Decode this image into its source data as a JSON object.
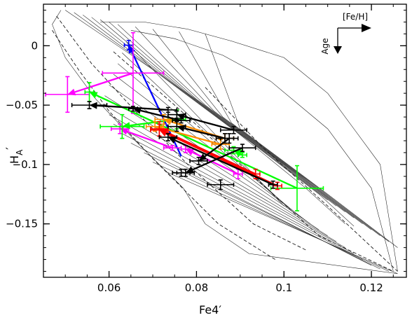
{
  "chart_data": {
    "type": "scatter",
    "xlabel": "Fe4′",
    "ylabel_main": "H",
    "ylabel_sub": "A",
    "ylabel_prime": "′",
    "xlim": [
      0.045,
      0.128
    ],
    "ylim": [
      -0.195,
      0.035
    ],
    "xticks": [
      0.06,
      0.08,
      0.1,
      0.12
    ],
    "xtick_labels": [
      "0.06",
      "0.08",
      "0.1",
      "0.12"
    ],
    "yticks": [
      0,
      -0.05,
      -0.1,
      -0.15
    ],
    "ytick_labels": [
      "0",
      "−0.05",
      "−0.1",
      "−0.15"
    ],
    "inset": {
      "feh_label": "[Fe/H]",
      "age_label": "Age"
    },
    "grid_lines": [
      {
        "style": "dashed",
        "points": [
          [
            0.047,
            0.013
          ],
          [
            0.053,
            -0.02
          ],
          [
            0.06,
            -0.055
          ],
          [
            0.07,
            -0.095
          ],
          [
            0.085,
            -0.15
          ],
          [
            0.098,
            -0.18
          ]
        ]
      },
      {
        "style": "dashed",
        "points": [
          [
            0.048,
            0.025
          ],
          [
            0.056,
            -0.015
          ],
          [
            0.066,
            -0.055
          ],
          [
            0.078,
            -0.1
          ],
          [
            0.093,
            -0.15
          ],
          [
            0.105,
            -0.172
          ]
        ]
      },
      {
        "style": "dashed",
        "points": [
          [
            0.061,
            -0.005
          ],
          [
            0.075,
            -0.05
          ],
          [
            0.09,
            -0.1
          ],
          [
            0.108,
            -0.16
          ],
          [
            0.125,
            -0.19
          ]
        ]
      },
      {
        "style": "dashed",
        "points": [
          [
            0.082,
            -0.035
          ],
          [
            0.095,
            -0.085
          ],
          [
            0.11,
            -0.135
          ],
          [
            0.126,
            -0.19
          ]
        ]
      },
      {
        "style": "solid",
        "points": [
          [
            0.064,
            0.003
          ],
          [
            0.1,
            -0.135
          ]
        ]
      },
      {
        "style": "solid",
        "points": [
          [
            0.063,
            -0.006
          ],
          [
            0.102,
            -0.14
          ]
        ]
      },
      {
        "style": "solid",
        "points": [
          [
            0.062,
            -0.015
          ],
          [
            0.104,
            -0.145
          ]
        ]
      },
      {
        "style": "solid",
        "points": [
          [
            0.061,
            -0.024
          ],
          [
            0.106,
            -0.15
          ]
        ]
      },
      {
        "style": "solid",
        "points": [
          [
            0.06,
            -0.033
          ],
          [
            0.108,
            -0.155
          ]
        ]
      },
      {
        "style": "solid",
        "points": [
          [
            0.059,
            -0.042
          ],
          [
            0.11,
            -0.16
          ]
        ]
      },
      {
        "style": "solid",
        "points": [
          [
            0.059,
            -0.05
          ],
          [
            0.112,
            -0.165
          ]
        ]
      },
      {
        "style": "solid",
        "points": [
          [
            0.06,
            -0.058
          ],
          [
            0.114,
            -0.17
          ]
        ]
      },
      {
        "style": "solid",
        "points": [
          [
            0.061,
            -0.066
          ],
          [
            0.116,
            -0.175
          ]
        ]
      },
      {
        "style": "solid",
        "points": [
          [
            0.063,
            -0.074
          ],
          [
            0.118,
            -0.18
          ]
        ]
      },
      {
        "style": "solid",
        "points": [
          [
            0.065,
            -0.082
          ],
          [
            0.12,
            -0.185
          ]
        ]
      },
      {
        "style": "solid",
        "points": [
          [
            0.068,
            -0.09
          ],
          [
            0.122,
            -0.188
          ]
        ]
      },
      {
        "style": "solid",
        "points": [
          [
            0.07,
            -0.098
          ],
          [
            0.124,
            -0.19
          ]
        ]
      },
      {
        "style": "solid",
        "points": [
          [
            0.073,
            -0.106
          ],
          [
            0.126,
            -0.192
          ]
        ]
      },
      {
        "style": "solid",
        "points": [
          [
            0.05,
            0.03
          ],
          [
            0.07,
            -0.02
          ],
          [
            0.09,
            -0.075
          ],
          [
            0.105,
            -0.12
          ],
          [
            0.114,
            -0.15
          ]
        ]
      },
      {
        "style": "solid",
        "points": [
          [
            0.052,
            0.028
          ],
          [
            0.072,
            -0.025
          ],
          [
            0.092,
            -0.08
          ],
          [
            0.108,
            -0.125
          ],
          [
            0.116,
            -0.152
          ]
        ]
      },
      {
        "style": "solid",
        "points": [
          [
            0.054,
            0.026
          ],
          [
            0.074,
            -0.03
          ],
          [
            0.094,
            -0.085
          ],
          [
            0.11,
            -0.13
          ]
        ]
      },
      {
        "style": "solid",
        "points": [
          [
            0.056,
            0.024
          ],
          [
            0.076,
            -0.035
          ],
          [
            0.096,
            -0.09
          ],
          [
            0.112,
            -0.135
          ]
        ]
      },
      {
        "style": "solid",
        "points": [
          [
            0.058,
            0.022
          ],
          [
            0.078,
            -0.04
          ],
          [
            0.098,
            -0.095
          ],
          [
            0.114,
            -0.14
          ]
        ]
      },
      {
        "style": "solid",
        "points": [
          [
            0.06,
            0.02
          ],
          [
            0.08,
            -0.045
          ],
          [
            0.1,
            -0.1
          ],
          [
            0.116,
            -0.145
          ]
        ]
      },
      {
        "style": "solid",
        "points": [
          [
            0.062,
            0.018
          ],
          [
            0.082,
            -0.05
          ],
          [
            0.102,
            -0.105
          ],
          [
            0.118,
            -0.15
          ]
        ]
      },
      {
        "style": "solid",
        "points": [
          [
            0.066,
            0.016
          ],
          [
            0.084,
            -0.055
          ],
          [
            0.104,
            -0.11
          ],
          [
            0.12,
            -0.155
          ]
        ]
      },
      {
        "style": "solid",
        "points": [
          [
            0.07,
            0.014
          ],
          [
            0.086,
            -0.06
          ],
          [
            0.106,
            -0.115
          ],
          [
            0.122,
            -0.16
          ]
        ]
      },
      {
        "style": "solid",
        "points": [
          [
            0.076,
            0.012
          ],
          [
            0.088,
            -0.065
          ],
          [
            0.108,
            -0.12
          ],
          [
            0.124,
            -0.165
          ]
        ]
      },
      {
        "style": "solid",
        "points": [
          [
            0.082,
            0.01
          ],
          [
            0.09,
            -0.07
          ],
          [
            0.11,
            -0.125
          ],
          [
            0.126,
            -0.17
          ]
        ]
      },
      {
        "style": "solid",
        "points": [
          [
            0.058,
            0.02
          ],
          [
            0.068,
            0.02
          ],
          [
            0.078,
            0.014
          ],
          [
            0.088,
            0.004
          ],
          [
            0.1,
            -0.01
          ],
          [
            0.11,
            -0.04
          ],
          [
            0.122,
            -0.1
          ],
          [
            0.126,
            -0.19
          ]
        ]
      },
      {
        "style": "solid",
        "points": [
          [
            0.065,
            0.013
          ],
          [
            0.075,
            0.006
          ],
          [
            0.086,
            -0.008
          ],
          [
            0.097,
            -0.03
          ],
          [
            0.11,
            -0.07
          ],
          [
            0.12,
            -0.12
          ],
          [
            0.125,
            -0.19
          ]
        ]
      },
      {
        "style": "solid",
        "points": [
          [
            0.049,
            0.03
          ],
          [
            0.047,
            0.018
          ],
          [
            0.05,
            -0.01
          ],
          [
            0.057,
            -0.045
          ],
          [
            0.066,
            -0.08
          ],
          [
            0.077,
            -0.12
          ],
          [
            0.082,
            -0.15
          ],
          [
            0.092,
            -0.175
          ],
          [
            0.126,
            -0.192
          ]
        ]
      }
    ],
    "vectors": [
      {
        "color": "#0000ff",
        "x1": 0.0765,
        "y1": -0.093,
        "x2": 0.0645,
        "y2": 0.0005,
        "xerr1": 0.0,
        "yerr1": 0.0,
        "xerr2": 0.001,
        "yerr2": 0.004
      },
      {
        "color": "#ff00ff",
        "x1": 0.0655,
        "y1": -0.023,
        "x2": 0.0505,
        "y2": -0.041,
        "xerr1": 0.007,
        "yerr1": 0.034,
        "xerr2": 0.005,
        "yerr2": 0.015
      },
      {
        "color": "#ff00ff",
        "x1": 0.0745,
        "y1": -0.086,
        "x2": 0.0625,
        "y2": -0.07,
        "xerr1": 0.002,
        "yerr1": 0.002,
        "xerr2": 0.002,
        "yerr2": 0.004
      },
      {
        "color": "#ff00ff",
        "x1": 0.0895,
        "y1": -0.108,
        "x2": 0.0775,
        "y2": -0.087,
        "xerr1": 0.001,
        "yerr1": 0.004,
        "xerr2": 0.001,
        "yerr2": 0.003
      },
      {
        "color": "#00ff00",
        "x1": 0.103,
        "y1": -0.12,
        "x2": 0.0555,
        "y2": -0.039,
        "xerr1": 0.006,
        "yerr1": 0.019,
        "xerr2": 0.001,
        "yerr2": 0.008
      },
      {
        "color": "#00ff00",
        "x1": 0.0755,
        "y1": -0.062,
        "x2": 0.063,
        "y2": -0.068,
        "xerr1": 0.002,
        "yerr1": 0.008,
        "xerr2": 0.005,
        "yerr2": 0.01
      },
      {
        "color": "#00ff00",
        "x1": 0.0905,
        "y1": -0.092,
        "x2": 0.0885,
        "y2": -0.088,
        "xerr1": 0.001,
        "yerr1": 0.002,
        "xerr2": 0.002,
        "yerr2": 0.003
      },
      {
        "color": "#ff8c00",
        "x1": 0.0855,
        "y1": -0.083,
        "x2": 0.0705,
        "y2": -0.068,
        "xerr1": 0.002,
        "yerr1": 0.004,
        "xerr2": 0.002,
        "yerr2": 0.004
      },
      {
        "color": "#ff8c00",
        "x1": 0.0865,
        "y1": -0.078,
        "x2": 0.0725,
        "y2": -0.062,
        "xerr1": 0.002,
        "yerr1": 0.004,
        "xerr2": 0.002,
        "yerr2": 0.004
      },
      {
        "color": "#ff0000",
        "x1": 0.0985,
        "y1": -0.118,
        "x2": 0.0715,
        "y2": -0.071,
        "xerr1": 0.001,
        "yerr1": 0.003,
        "xerr2": 0.002,
        "yerr2": 0.005
      },
      {
        "color": "#ff0000",
        "x1": 0.0935,
        "y1": -0.108,
        "x2": 0.0715,
        "y2": -0.07,
        "xerr1": 0.001,
        "yerr1": 0.004,
        "xerr2": 0.002,
        "yerr2": 0.006
      },
      {
        "color": "#000000",
        "x1": 0.0735,
        "y1": -0.054,
        "x2": 0.0555,
        "y2": -0.05,
        "xerr1": 0.002,
        "yerr1": 0.002,
        "xerr2": 0.004,
        "yerr2": 0.003
      },
      {
        "color": "#000000",
        "x1": 0.0765,
        "y1": -0.063,
        "x2": 0.0655,
        "y2": -0.053,
        "xerr1": 0.002,
        "yerr1": 0.002,
        "xerr2": 0.001,
        "yerr2": 0.002
      },
      {
        "color": "#000000",
        "x1": 0.0885,
        "y1": -0.071,
        "x2": 0.0755,
        "y2": -0.058,
        "xerr1": 0.003,
        "yerr1": 0.003,
        "xerr2": 0.002,
        "yerr2": 0.003
      },
      {
        "color": "#000000",
        "x1": 0.0865,
        "y1": -0.078,
        "x2": 0.0755,
        "y2": -0.068,
        "xerr1": 0.002,
        "yerr1": 0.004,
        "xerr2": 0.002,
        "yerr2": 0.004
      },
      {
        "color": "#000000",
        "x1": 0.0905,
        "y1": -0.086,
        "x2": 0.0775,
        "y2": -0.107,
        "xerr1": 0.003,
        "yerr1": 0.003,
        "xerr2": 0.002,
        "yerr2": 0.003
      },
      {
        "color": "#000000",
        "x1": 0.0875,
        "y1": -0.078,
        "x2": 0.0805,
        "y2": -0.097,
        "xerr1": 0.002,
        "yerr1": 0.004,
        "xerr2": 0.002,
        "yerr2": 0.003
      },
      {
        "color": "#000000",
        "x1": 0.0975,
        "y1": -0.117,
        "x2": 0.0735,
        "y2": -0.077,
        "xerr1": 0.001,
        "yerr1": 0.003,
        "xerr2": 0.002,
        "yerr2": 0.003
      },
      {
        "color": "#000000",
        "x1": 0.0855,
        "y1": -0.117,
        "x2": 0.0855,
        "y2": -0.117,
        "xerr1": 0.003,
        "yerr1": 0.004,
        "xerr2": 0.0,
        "yerr2": 0.0
      },
      {
        "color": "#000000",
        "x1": 0.0765,
        "y1": -0.107,
        "x2": 0.0765,
        "y2": -0.107,
        "xerr1": 0.002,
        "yerr1": 0.003,
        "xerr2": 0.0,
        "yerr2": 0.0
      }
    ],
    "grid": false,
    "legend": "none"
  }
}
